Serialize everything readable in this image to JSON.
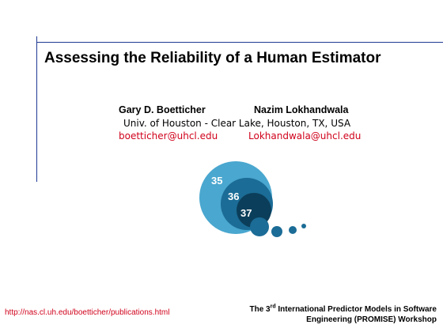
{
  "title": "Assessing the Reliability of a Human Estimator",
  "authors": [
    {
      "name": "Gary D. Boetticher",
      "email": "boetticher@uhcl.edu"
    },
    {
      "name": "Nazim Lokhandwala",
      "email": "Lokhandwala@uhcl.edu"
    }
  ],
  "affiliation": "Univ. of Houston - Clear Lake, Houston, TX, USA",
  "logo": {
    "numbers": [
      "35",
      "36",
      "37"
    ],
    "colors": {
      "outer": "#4aa7cf",
      "middle": "#1b6c96",
      "inner": "#0b3e5a",
      "dots": "#1b6c96"
    }
  },
  "footer": {
    "url": "http://nas.cl.uh.edu/boetticher/publications.html",
    "workshop_prefix": "The 3",
    "workshop_ordinal": "rd",
    "workshop_line1_rest": " International Predictor Models in Software",
    "workshop_line2": "Engineering (PROMISE) Workshop"
  },
  "colors": {
    "rule": "#1f3a93",
    "link": "#d0021b",
    "text": "#000000"
  }
}
